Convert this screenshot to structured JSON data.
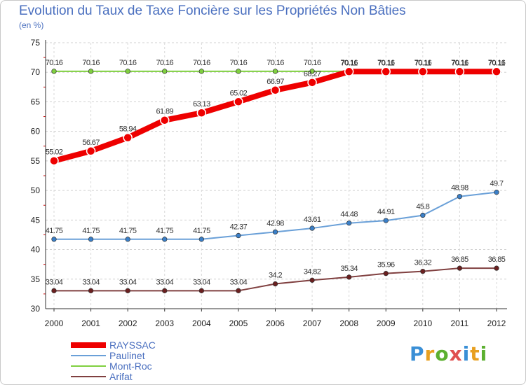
{
  "title": "Evolution du Taux de Taxe Foncière sur les Propriétés Non Bâties",
  "subtitle": "(en %)",
  "logo": {
    "text": "Proxiti",
    "colors": [
      "#3a8fd6",
      "#e8a020",
      "#5cb030",
      "#e05050"
    ]
  },
  "chart_data": {
    "type": "line",
    "title": "Evolution du Taux de Taxe Foncière sur les Propriétés Non Bâties",
    "ylabel": "(en %)",
    "xlabel": "",
    "ylim": [
      30,
      75
    ],
    "yticks": [
      "30",
      "35",
      "40",
      "45",
      "50",
      "55",
      "60",
      "65",
      "70",
      "75"
    ],
    "categories": [
      "2000",
      "2001",
      "2002",
      "2003",
      "2004",
      "2005",
      "2006",
      "2007",
      "2008",
      "2009",
      "2010",
      "2011",
      "2012"
    ],
    "grid": "horizontal",
    "legend_position": "bottom-left",
    "series": [
      {
        "name": "Mont-Roc",
        "color": "#80d040",
        "marker_color": "#80d040",
        "width": 2,
        "values": [
          70.16,
          70.16,
          70.16,
          70.16,
          70.16,
          70.16,
          70.16,
          70.16,
          70.16,
          70.16,
          70.16,
          70.16,
          70.16
        ],
        "labels": [
          "70.16",
          "70.16",
          "70.16",
          "70.16",
          "70.16",
          "70.16",
          "70.16",
          "70.16",
          "70.16",
          "70.16",
          "70.16",
          "70.16",
          "70.16"
        ]
      },
      {
        "name": "Arifat",
        "color": "#804040",
        "marker_color": "#6b2020",
        "width": 2,
        "values": [
          33.04,
          33.04,
          33.04,
          33.04,
          33.04,
          33.04,
          34.2,
          34.82,
          35.34,
          35.96,
          36.32,
          36.85,
          36.85
        ],
        "labels": [
          "33.04",
          "33.04",
          "33.04",
          "33.04",
          "33.04",
          "33.04",
          "34.2",
          "34.82",
          "35.34",
          "35.96",
          "36.32",
          "36.85",
          "36.85"
        ]
      },
      {
        "name": "Paulinet",
        "color": "#6aa0d8",
        "marker_color": "#3a7fc8",
        "width": 2,
        "values": [
          41.75,
          41.75,
          41.75,
          41.75,
          41.75,
          42.37,
          42.98,
          43.61,
          44.48,
          44.91,
          45.8,
          48.98,
          49.7
        ],
        "labels": [
          "41.75",
          "41.75",
          "41.75",
          "41.75",
          "41.75",
          "42.37",
          "42.98",
          "43.61",
          "44.48",
          "44.91",
          "45.8",
          "48.98",
          "49.7"
        ]
      },
      {
        "name": "RAYSSAC",
        "color": "#ee0000",
        "marker_color": "#ee0000",
        "width": 8,
        "values": [
          55.02,
          56.67,
          58.94,
          61.89,
          63.13,
          65.02,
          66.97,
          68.27,
          70.11,
          70.11,
          70.11,
          70.11,
          70.11
        ],
        "labels": [
          "55.02",
          "56.67",
          "58.94",
          "61.89",
          "63.13",
          "65.02",
          "66.97",
          "68.27",
          "70.11",
          "70.11",
          "70.11",
          "70.11",
          "70.11"
        ]
      }
    ],
    "legend": [
      {
        "name": "RAYSSAC",
        "color": "#ee0000",
        "width": 8
      },
      {
        "name": "Paulinet",
        "color": "#6aa0d8",
        "width": 2
      },
      {
        "name": "Mont-Roc",
        "color": "#80d040",
        "width": 2
      },
      {
        "name": "Arifat",
        "color": "#804040",
        "width": 2
      }
    ]
  }
}
